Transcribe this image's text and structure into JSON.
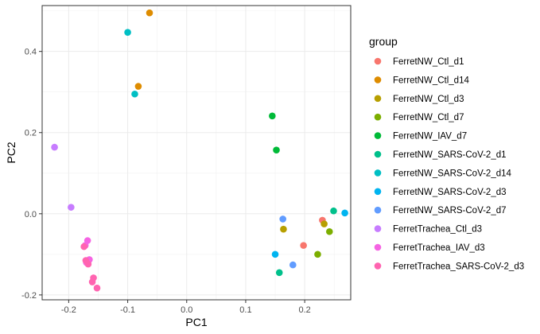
{
  "chart_data": {
    "type": "scatter",
    "xlabel": "PC1",
    "ylabel": "PC2",
    "xlim": [
      -0.245,
      0.278
    ],
    "ylim": [
      -0.212,
      0.513
    ],
    "x_ticks": [
      -0.2,
      -0.1,
      0.0,
      0.1,
      0.2
    ],
    "x_tick_labels": [
      "-0.2",
      "-0.1",
      "0.0",
      "0.1",
      "0.2"
    ],
    "y_ticks": [
      -0.2,
      0.0,
      0.2,
      0.4
    ],
    "y_tick_labels": [
      "-0.2",
      "0.0",
      "0.2",
      "0.4"
    ],
    "grid": true,
    "legend_title": "group",
    "legend_position": "right",
    "series": [
      {
        "name": "FerretNW_Ctl_d1",
        "color": "#F8766D",
        "points": [
          [
            0.198,
            -0.078
          ],
          [
            0.23,
            -0.016
          ]
        ]
      },
      {
        "name": "FerretNW_Ctl_d14",
        "color": "#DE8C00",
        "points": [
          [
            -0.082,
            0.314
          ],
          [
            -0.063,
            0.495
          ]
        ]
      },
      {
        "name": "FerretNW_Ctl_d3",
        "color": "#B79F00",
        "points": [
          [
            0.164,
            -0.038
          ],
          [
            0.233,
            -0.025
          ]
        ]
      },
      {
        "name": "FerretNW_Ctl_d7",
        "color": "#7CAE00",
        "points": [
          [
            0.222,
            -0.1
          ],
          [
            0.242,
            -0.044
          ]
        ]
      },
      {
        "name": "FerretNW_IAV_d7",
        "color": "#00BA38",
        "points": [
          [
            0.145,
            0.241
          ],
          [
            0.152,
            0.157
          ]
        ]
      },
      {
        "name": "FerretNW_SARS-CoV-2_d1",
        "color": "#00C08B",
        "points": [
          [
            0.157,
            -0.145
          ],
          [
            0.249,
            0.007
          ]
        ]
      },
      {
        "name": "FerretNW_SARS-CoV-2_d14",
        "color": "#00BFC4",
        "points": [
          [
            -0.1,
            0.447
          ],
          [
            -0.088,
            0.295
          ]
        ]
      },
      {
        "name": "FerretNW_SARS-CoV-2_d3",
        "color": "#00B4F0",
        "points": [
          [
            0.15,
            -0.1
          ],
          [
            0.268,
            0.002
          ]
        ]
      },
      {
        "name": "FerretNW_SARS-CoV-2_d7",
        "color": "#619CFF",
        "points": [
          [
            0.163,
            -0.013
          ],
          [
            0.18,
            -0.126
          ]
        ]
      },
      {
        "name": "FerretTrachea_Ctl_d3",
        "color": "#C77CFF",
        "points": [
          [
            -0.224,
            0.164
          ],
          [
            -0.196,
            0.016
          ]
        ]
      },
      {
        "name": "FerretTrachea_IAV_d3",
        "color": "#F564E3",
        "points": [
          [
            -0.168,
            -0.066
          ],
          [
            -0.172,
            -0.078
          ],
          [
            -0.165,
            -0.113
          ],
          [
            -0.17,
            -0.12
          ]
        ]
      },
      {
        "name": "FerretTrachea_SARS-CoV-2_d3",
        "color": "#FF64B0",
        "points": [
          [
            -0.171,
            -0.115
          ],
          [
            -0.167,
            -0.124
          ],
          [
            -0.158,
            -0.158
          ],
          [
            -0.16,
            -0.168
          ],
          [
            -0.152,
            -0.183
          ],
          [
            -0.174,
            -0.081
          ]
        ]
      }
    ]
  }
}
